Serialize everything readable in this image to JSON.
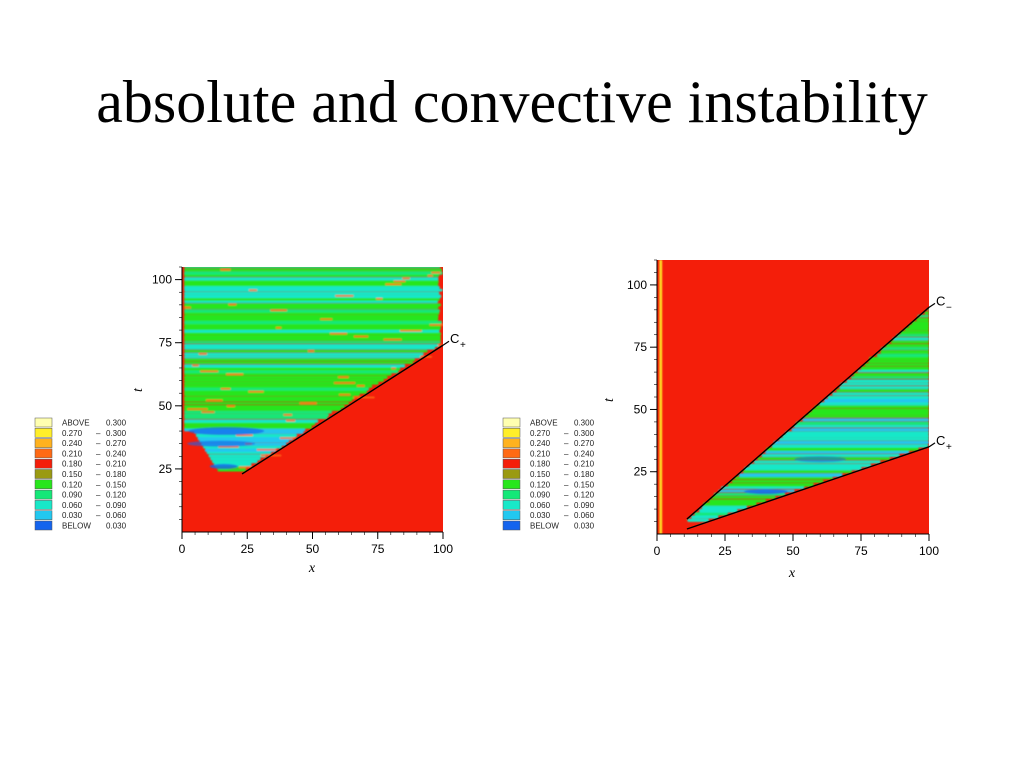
{
  "slide": {
    "title": "absolute and convective instability"
  },
  "colors": {
    "above": "#ffffb0",
    "0.270-0.300": "#ffee2a",
    "0.240-0.270": "#ffb21e",
    "0.210-0.240": "#ff6a14",
    "0.180-0.210": "#f41e0a",
    "0.150-0.180": "#9a9a12",
    "0.120-0.150": "#28e61c",
    "0.090-0.120": "#14e878",
    "0.060-0.090": "#18e8c8",
    "0.030-0.060": "#22c8f0",
    "below": "#1464ee"
  },
  "chart_data": [
    {
      "type": "heatmap",
      "xlabel": "x",
      "ylabel": "t",
      "xlim": [
        0,
        100
      ],
      "ylim": [
        0,
        105
      ],
      "x_ticks": [
        "0",
        "25",
        "50",
        "75",
        "100"
      ],
      "y_ticks": [
        "25",
        "50",
        "75",
        "100"
      ],
      "x_tick_values": [
        0,
        25,
        50,
        75,
        100
      ],
      "y_tick_values": [
        25,
        50,
        75,
        100
      ],
      "legend": [
        {
          "label": "ABOVE",
          "range": "0.300"
        },
        {
          "label": "0.270",
          "range": "0.300"
        },
        {
          "label": "0.240",
          "range": "0.270"
        },
        {
          "label": "0.210",
          "range": "0.240"
        },
        {
          "label": "0.180",
          "range": "0.210"
        },
        {
          "label": "0.150",
          "range": "0.180"
        },
        {
          "label": "0.120",
          "range": "0.150"
        },
        {
          "label": "0.090",
          "range": "0.120"
        },
        {
          "label": "0.060",
          "range": "0.090"
        },
        {
          "label": "0.030",
          "range": "0.060"
        },
        {
          "label": "BELOW",
          "range": "0.030"
        }
      ],
      "legend_keys": [
        "above",
        "0.270-0.300",
        "0.240-0.270",
        "0.210-0.240",
        "0.180-0.210",
        "0.150-0.180",
        "0.120-0.150",
        "0.090-0.120",
        "0.060-0.090",
        "0.030-0.060",
        "below"
      ],
      "background_level": "0.180-0.210",
      "rays": [
        {
          "label": "C",
          "sub": "+",
          "from": [
            23,
            23
          ],
          "to": [
            100,
            74
          ]
        }
      ],
      "wavepacket": {
        "left_edge_x": 0,
        "apex": [
          23,
          23
        ],
        "right_ray": [
          [
            23,
            23
          ],
          [
            100,
            74
          ]
        ]
      }
    },
    {
      "type": "heatmap",
      "xlabel": "x",
      "ylabel": "t",
      "xlim": [
        0,
        100
      ],
      "ylim": [
        0,
        110
      ],
      "x_ticks": [
        "0",
        "25",
        "50",
        "75",
        "100"
      ],
      "y_ticks": [
        "25",
        "50",
        "75",
        "100"
      ],
      "x_tick_values": [
        0,
        25,
        50,
        75,
        100
      ],
      "y_tick_values": [
        25,
        50,
        75,
        100
      ],
      "legend": [
        {
          "label": "ABOVE",
          "range": "0.300"
        },
        {
          "label": "0.270",
          "range": "0.300"
        },
        {
          "label": "0.240",
          "range": "0.270"
        },
        {
          "label": "0.210",
          "range": "0.240"
        },
        {
          "label": "0.180",
          "range": "0.210"
        },
        {
          "label": "0.150",
          "range": "0.180"
        },
        {
          "label": "0.120",
          "range": "0.150"
        },
        {
          "label": "0.090",
          "range": "0.120"
        },
        {
          "label": "0.060",
          "range": "0.090"
        },
        {
          "label": "0.030",
          "range": "0.060"
        },
        {
          "label": "BELOW",
          "range": "0.030"
        }
      ],
      "legend_keys": [
        "above",
        "0.270-0.300",
        "0.240-0.270",
        "0.210-0.240",
        "0.180-0.210",
        "0.150-0.180",
        "0.120-0.150",
        "0.090-0.120",
        "0.060-0.090",
        "0.030-0.060",
        "below"
      ],
      "background_level": "0.180-0.210",
      "rays": [
        {
          "label": "C",
          "sub": "−",
          "from": [
            11,
            6
          ],
          "to": [
            100,
            91
          ]
        },
        {
          "label": "C",
          "sub": "+",
          "from": [
            11,
            2
          ],
          "to": [
            100,
            35
          ]
        }
      ],
      "wavepacket": {
        "apex": [
          11,
          4
        ],
        "upper_ray": [
          [
            11,
            6
          ],
          [
            100,
            91
          ]
        ],
        "lower_ray": [
          [
            11,
            2
          ],
          [
            100,
            35
          ]
        ]
      }
    }
  ]
}
